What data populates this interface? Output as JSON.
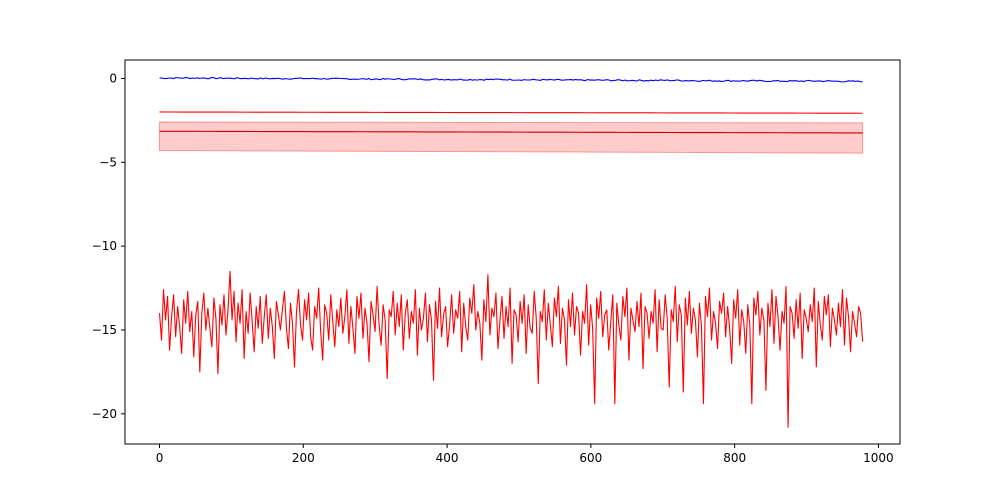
{
  "chart_data": {
    "type": "line",
    "title": "",
    "xlabel": "",
    "ylabel": "",
    "xlim": [
      -48,
      1030
    ],
    "ylim": [
      -21.8,
      1.1
    ],
    "xticks": [
      0,
      200,
      400,
      600,
      800,
      1000
    ],
    "xtick_labels": [
      "0",
      "200",
      "400",
      "600",
      "800",
      "1000"
    ],
    "yticks": [
      0,
      -5,
      -10,
      -15,
      -20
    ],
    "ytick_labels": [
      "0",
      "−5",
      "−10",
      "−15",
      "−20"
    ],
    "grid": false,
    "legend": "none",
    "bands": [
      {
        "color": "#ff0000",
        "opacity": 0.2,
        "x": [
          0,
          978
        ],
        "upper": [
          -2.6,
          -2.65
        ],
        "lower": [
          -4.3,
          -4.45
        ]
      }
    ],
    "series": [
      {
        "color": "#0000ff",
        "values": [
          0.02,
          0.03,
          0.02,
          0.01,
          0.0,
          -0.01,
          0.0,
          -0.02,
          -0.03,
          -0.04,
          -0.04,
          -0.05,
          -0.06,
          -0.07,
          -0.06,
          -0.08,
          -0.09,
          -0.1,
          -0.1,
          -0.11,
          -0.12,
          -0.11,
          -0.13,
          -0.14,
          -0.14,
          -0.15,
          -0.16,
          -0.15,
          -0.17,
          -0.18
        ]
      },
      {
        "color": "#ff0000",
        "values": [
          -2.0,
          -2.005,
          -2.01,
          -2.015,
          -2.02,
          -2.025,
          -2.03,
          -2.035,
          -2.04,
          -2.045,
          -2.05,
          -2.055,
          -2.06,
          -2.065,
          -2.07,
          -2.075
        ]
      },
      {
        "color": "#cc0000",
        "values": [
          -3.15,
          -3.16,
          -3.17,
          -3.18,
          -3.19,
          -3.2,
          -3.21,
          -3.22,
          -3.23,
          -3.24,
          -3.25
        ]
      },
      {
        "color": "#ff0000",
        "values": [
          -14.0,
          -15.6,
          -12.6,
          -14.4,
          -13.0,
          -16.2,
          -14.2,
          -12.9,
          -15.4,
          -13.6,
          -14.8,
          -16.4,
          -13.2,
          -14.6,
          -12.7,
          -15.1,
          -13.9,
          -16.6,
          -14.1,
          -13.3,
          -17.5,
          -14.0,
          -12.8,
          -15.0,
          -13.7,
          -14.9,
          -16.0,
          -13.1,
          -14.3,
          -17.6,
          -13.5,
          -14.7,
          -12.9,
          -15.3,
          -13.8,
          -11.5,
          -14.4,
          -12.7,
          -15.7,
          -13.4,
          -14.6,
          -12.6,
          -16.7,
          -13.9,
          -15.2,
          -12.8,
          -14.5,
          -16.3,
          -13.6,
          -14.9,
          -13.0,
          -15.8,
          -14.2,
          -12.9,
          -15.5,
          -13.7,
          -14.8,
          -16.7,
          -13.3,
          -14.1,
          -15.0,
          -13.8,
          -12.7,
          -14.9,
          -16.1,
          -13.4,
          -14.6,
          -17.2,
          -13.9,
          -12.6,
          -14.7,
          -15.6,
          -13.2,
          -14.4,
          -12.8,
          -15.4,
          -16.2,
          -13.6,
          -14.3,
          -12.5,
          -15.1,
          -16.8,
          -13.5,
          -14.0,
          -15.6,
          -12.9,
          -14.5,
          -16.0,
          -13.8,
          -14.8,
          -13.1,
          -15.2,
          -14.2,
          -12.6,
          -15.8,
          -13.6,
          -14.9,
          -16.4,
          -13.0,
          -14.3,
          -12.8,
          -15.5,
          -13.7,
          -14.6,
          -16.9,
          -13.3,
          -14.1,
          -15.1,
          -12.4,
          -14.7,
          -15.9,
          -13.5,
          -14.4,
          -17.9,
          -13.8,
          -14.2,
          -12.7,
          -15.3,
          -13.4,
          -14.8,
          -12.9,
          -16.2,
          -14.0,
          -13.2,
          -15.5,
          -13.9,
          -14.6,
          -12.6,
          -16.5,
          -13.7,
          -15.0,
          -14.3,
          -12.8,
          -15.7,
          -13.5,
          -14.4,
          -18.0,
          -13.3,
          -14.9,
          -12.5,
          -15.4,
          -14.1,
          -13.6,
          -16.0,
          -14.7,
          -12.9,
          -15.2,
          -13.8,
          -14.3,
          -12.7,
          -16.3,
          -13.4,
          -14.8,
          -15.6,
          -13.1,
          -14.0,
          -12.3,
          -15.0,
          -13.9,
          -14.6,
          -16.8,
          -13.2,
          -14.5,
          -11.7,
          -15.3,
          -13.7,
          -14.2,
          -12.8,
          -16.1,
          -14.4,
          -13.0,
          -15.5,
          -13.6,
          -14.8,
          -12.5,
          -17.0,
          -13.8,
          -14.1,
          -15.7,
          -13.3,
          -14.6,
          -12.9,
          -16.4,
          -13.5,
          -14.9,
          -15.2,
          -12.7,
          -14.3,
          -18.2,
          -13.9,
          -14.5,
          -12.6,
          -15.6,
          -13.4,
          -14.7,
          -16.0,
          -13.1,
          -14.2,
          -12.4,
          -15.8,
          -13.7,
          -14.4,
          -17.1,
          -13.2,
          -14.8,
          -12.8,
          -15.3,
          -13.6,
          -14.0,
          -16.5,
          -13.9,
          -14.6,
          -12.3,
          -15.9,
          -13.5,
          -14.9,
          -19.4,
          -13.1,
          -14.3,
          -12.7,
          -15.4,
          -14.1,
          -13.8,
          -16.2,
          -14.5,
          -12.9,
          -19.4,
          -13.4,
          -14.7,
          -15.6,
          -13.0,
          -14.2,
          -12.5,
          -16.8,
          -13.7,
          -14.4,
          -15.1,
          -13.3,
          -14.8,
          -12.8,
          -17.3,
          -13.6,
          -14.0,
          -15.5,
          -13.9,
          -14.6,
          -12.6,
          -16.3,
          -13.2,
          -14.9,
          -15.0,
          -12.9,
          -14.3,
          -18.4,
          -13.8,
          -14.5,
          -12.4,
          -15.7,
          -13.5,
          -14.1,
          -18.7,
          -13.1,
          -14.7,
          -12.7,
          -15.2,
          -13.7,
          -14.4,
          -16.6,
          -13.4,
          -14.8,
          -19.4,
          -13.0,
          -14.2,
          -12.5,
          -15.6,
          -13.9,
          -14.6,
          -16.1,
          -13.3,
          -14.0,
          -12.8,
          -15.4,
          -13.6,
          -14.9,
          -17.0,
          -13.2,
          -14.3,
          -12.6,
          -15.9,
          -13.8,
          -14.5,
          -16.4,
          -13.5,
          -14.7,
          -19.4,
          -13.1,
          -14.1,
          -12.7,
          -15.3,
          -13.7,
          -14.4,
          -18.6,
          -13.4,
          -14.8,
          -12.6,
          -15.8,
          -13.0,
          -14.2,
          -16.2,
          -13.9,
          -14.6,
          -12.4,
          -20.8,
          -13.6,
          -14.0,
          -15.5,
          -13.2,
          -14.9,
          -12.8,
          -16.7,
          -13.8,
          -14.3,
          -15.1,
          -13.5,
          -14.5,
          -12.5,
          -17.2,
          -13.3,
          -14.7,
          -15.6,
          -13.0,
          -14.1,
          -12.9,
          -16.0,
          -13.7,
          -14.4,
          -15.3,
          -13.4,
          -14.8,
          -12.6,
          -15.9,
          -13.1,
          -14.2,
          -16.3,
          -13.9,
          -14.6,
          -15.4,
          -13.6,
          -14.0,
          -15.7
        ]
      }
    ]
  }
}
